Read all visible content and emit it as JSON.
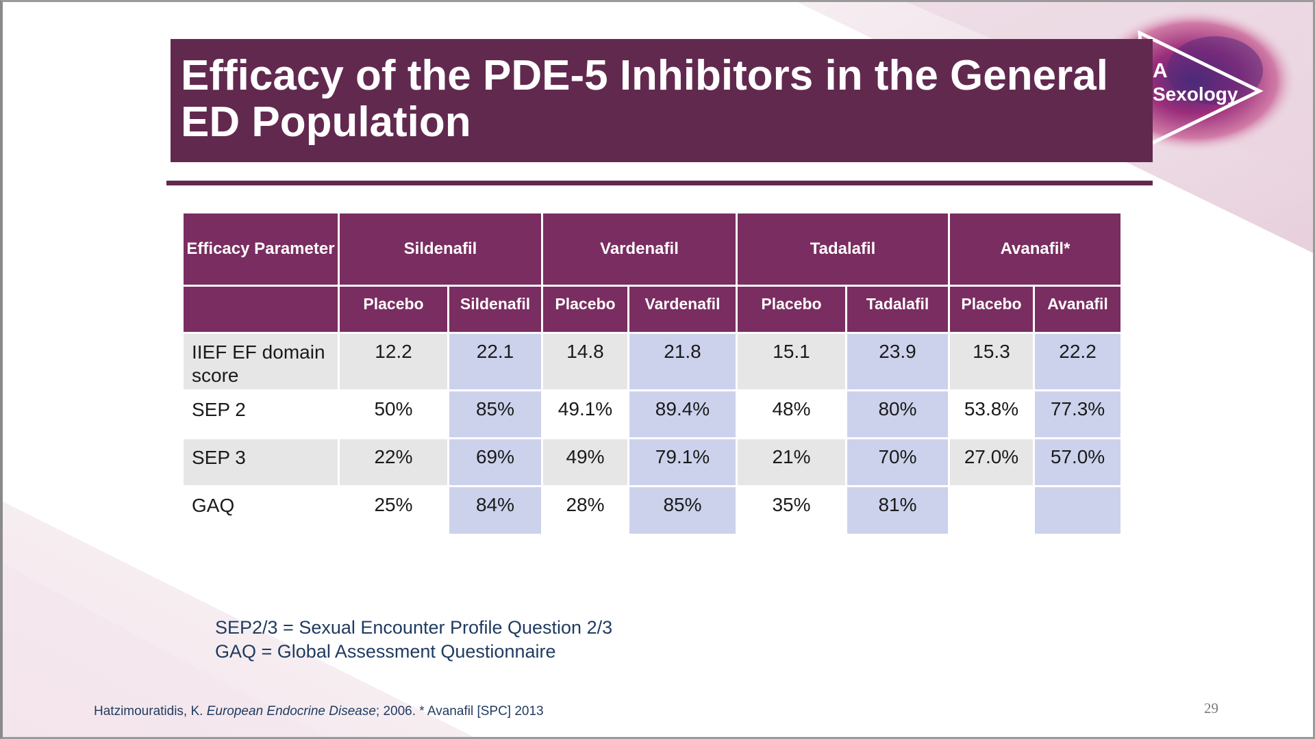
{
  "slide": {
    "title": "Efficacy of the PDE-5 Inhibitors in the General ED Population",
    "brand": {
      "line1": "A",
      "line2": "Sexology"
    },
    "page_number": "29",
    "colors": {
      "primary": "#62294f",
      "header": "#7a2d60",
      "highlight": "#ccd2ec",
      "shade": "#e6e6e6",
      "note_text": "#1f3a5f"
    }
  },
  "table": {
    "param_header": "Efficacy Parameter",
    "drugs": [
      "Sildenafil",
      "Vardenafil",
      "Tadalafil",
      "Avanafil*"
    ],
    "subheaders": [
      "",
      "Placebo",
      "Sildenafil",
      "Placebo",
      "Vardenafil",
      "Placebo",
      "Tadalafil",
      "Placebo",
      "Avanafil"
    ],
    "rows": [
      {
        "param": "IIEF EF domain score",
        "values": [
          "12.2",
          "22.1",
          "14.8",
          "21.8",
          "15.1",
          "23.9",
          "15.3",
          "22.2"
        ]
      },
      {
        "param": "SEP 2",
        "values": [
          "50%",
          "85%",
          "49.1%",
          "89.4%",
          "48%",
          "80%",
          "53.8%",
          "77.3%"
        ]
      },
      {
        "param": "SEP 3",
        "values": [
          "22%",
          "69%",
          "49%",
          "79.1%",
          "21%",
          "70%",
          "27.0%",
          "57.0%"
        ]
      },
      {
        "param": "GAQ",
        "values": [
          "25%",
          "84%",
          "28%",
          "85%",
          "35%",
          "81%",
          "",
          ""
        ]
      }
    ]
  },
  "footnotes": {
    "line1": "SEP2/3 = Sexual Encounter Profile Question 2/3",
    "line2": "GAQ = Global Assessment Questionnaire"
  },
  "citation": {
    "author": "Hatzimouratidis, K. ",
    "journal": "European Endocrine Disease",
    "rest": "; 2006. * Avanafil [SPC] 2013"
  }
}
